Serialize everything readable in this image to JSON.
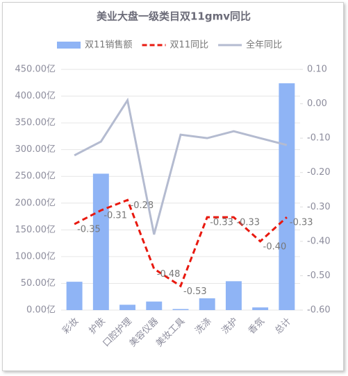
{
  "chart_data": {
    "type": "combo",
    "title": "美业大盘一级类目双11gmv同比",
    "categories": [
      "彩妆",
      "护肤",
      "口腔护理",
      "美容仪器",
      "美妆工具",
      "洗涤",
      "洗护",
      "香氛",
      "总计"
    ],
    "series": [
      {
        "name": "双11销售额",
        "type": "bar",
        "color": "#8fb4f5",
        "values": [
          53,
          255,
          10,
          16,
          2,
          22,
          54,
          5,
          424
        ]
      },
      {
        "name": "双11同比",
        "type": "line",
        "axis": "y2",
        "dashed": true,
        "color": "#e8190f",
        "values": [
          -0.35,
          -0.31,
          -0.28,
          -0.48,
          -0.53,
          -0.33,
          -0.33,
          -0.4,
          -0.33
        ],
        "value_labels": [
          "-0.35",
          "-0.31",
          "-0.28",
          "-0.48",
          "-0.53",
          "-0.33",
          "-0.33",
          "-0.40",
          "-0.33"
        ]
      },
      {
        "name": "全年同比",
        "type": "line",
        "axis": "y2",
        "dashed": false,
        "color": "#b4bbd0",
        "values": [
          -0.15,
          -0.11,
          0.01,
          -0.38,
          -0.09,
          -0.1,
          -0.08,
          -0.1,
          -0.12
        ]
      }
    ],
    "ylim": [
      0,
      450
    ],
    "yticks": [
      {
        "value": 0,
        "label": "0.00亿"
      },
      {
        "value": 50,
        "label": "50.00亿"
      },
      {
        "value": 100,
        "label": "100.00亿"
      },
      {
        "value": 150,
        "label": "150.00亿"
      },
      {
        "value": 200,
        "label": "200.00亿"
      },
      {
        "value": 250,
        "label": "250.00亿"
      },
      {
        "value": 300,
        "label": "300.00亿"
      },
      {
        "value": 350,
        "label": "350.00亿"
      },
      {
        "value": 400,
        "label": "400.00亿"
      },
      {
        "value": 450,
        "label": "450.00亿"
      }
    ],
    "y2lim": [
      -0.6,
      0.1
    ],
    "y2ticks": [
      {
        "value": -0.6,
        "label": "-0.60"
      },
      {
        "value": -0.5,
        "label": "-0.50"
      },
      {
        "value": -0.4,
        "label": "-0.40"
      },
      {
        "value": -0.3,
        "label": "-0.30"
      },
      {
        "value": -0.2,
        "label": "-0.20"
      },
      {
        "value": -0.1,
        "label": "-0.10"
      },
      {
        "value": 0,
        "label": "0.00"
      },
      {
        "value": 0.1,
        "label": "0.10"
      }
    ],
    "grid": true
  }
}
